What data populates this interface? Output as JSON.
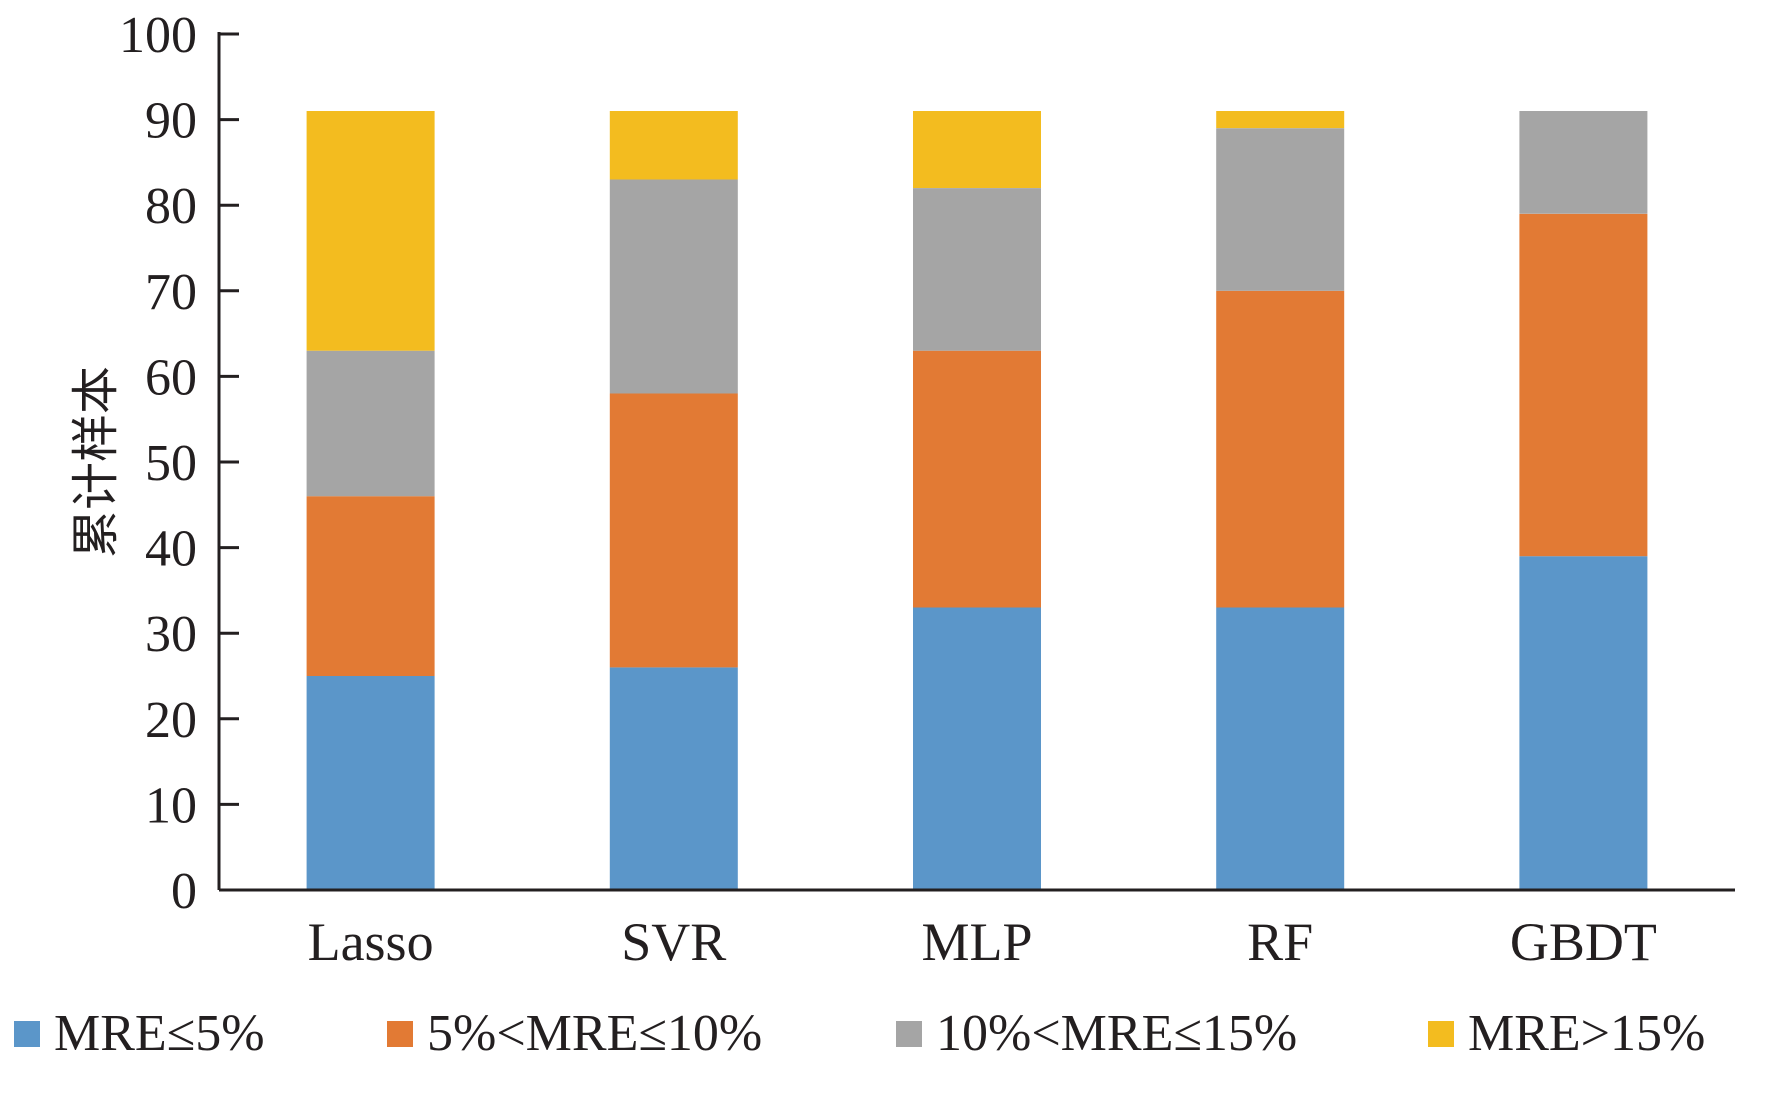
{
  "chart_data": {
    "type": "bar",
    "stacked": true,
    "title": "",
    "xlabel": "",
    "ylabel": "累计样本",
    "ylim": [
      0,
      100
    ],
    "yticks": [
      0,
      10,
      20,
      30,
      40,
      50,
      60,
      70,
      80,
      90,
      100
    ],
    "grid": false,
    "legend_position": "bottom",
    "categories": [
      "Lasso",
      "SVR",
      "MLP",
      "RF",
      "GBDT"
    ],
    "series": [
      {
        "name": "MRE≤5%",
        "color": "#5b96c9",
        "values": [
          25,
          26,
          33,
          33,
          39
        ]
      },
      {
        "name": "5%<MRE≤10%",
        "color": "#e27a34",
        "values": [
          21,
          32,
          30,
          37,
          40
        ]
      },
      {
        "name": "10%<MRE≤15%",
        "color": "#a5a5a5",
        "values": [
          17,
          25,
          19,
          19,
          12
        ]
      },
      {
        "name": "MRE>15%",
        "color": "#f3bc1f",
        "values": [
          28,
          8,
          9,
          2,
          0
        ]
      }
    ]
  }
}
